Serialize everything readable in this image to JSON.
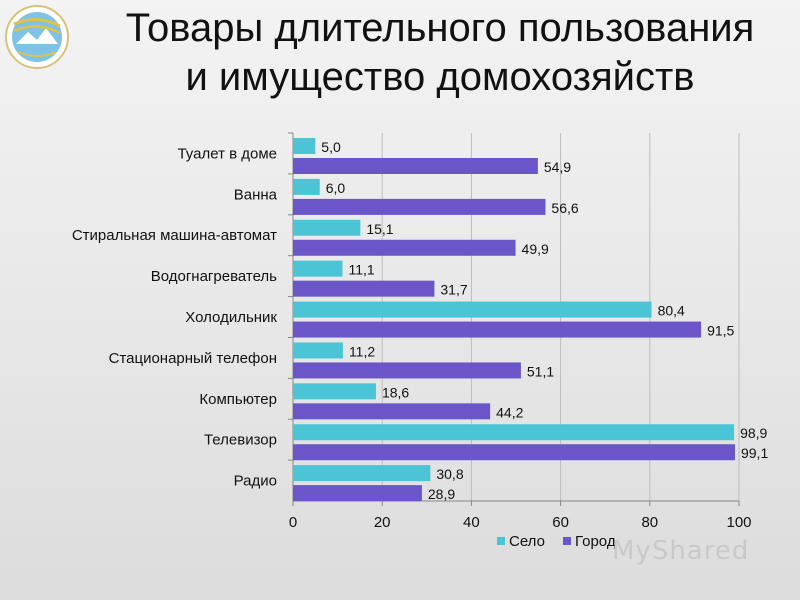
{
  "header": {
    "title_line1": "Товары длительного пользования",
    "title_line2": "и имущество домохозяйств",
    "logo_icon": "statagency-logo-icon"
  },
  "watermark": {
    "text": "MyShared"
  },
  "colors": {
    "selo": "#4BC5D5",
    "gorod": "#6A56C8"
  },
  "chart_data": {
    "type": "bar",
    "orientation": "horizontal",
    "categories": [
      "Туалет в доме",
      "Ванна",
      "Стиральная машина-автомат",
      "Водогнагреватель",
      "Холодильник",
      "Стационарный телефон",
      "Компьютер",
      "Телевизор",
      "Радио"
    ],
    "series": [
      {
        "name": "Село",
        "values": [
          5.0,
          6.0,
          15.1,
          11.1,
          80.4,
          11.2,
          18.6,
          98.9,
          30.8
        ],
        "labels": [
          "5,0",
          "6,0",
          "15,1",
          "11,1",
          "80,4",
          "11,2",
          "18,6",
          "98,9",
          "30,8"
        ]
      },
      {
        "name": "Город",
        "values": [
          54.9,
          56.6,
          49.9,
          31.7,
          91.5,
          51.1,
          44.2,
          99.1,
          28.9
        ],
        "labels": [
          "54,9",
          "56,6",
          "49,9",
          "31,7",
          "91,5",
          "51,1",
          "44,2",
          "99,1",
          "28,9"
        ]
      }
    ],
    "xlim": [
      0,
      100
    ],
    "xticks": [
      "0",
      "20",
      "40",
      "60",
      "80",
      "100"
    ],
    "grid": true,
    "legend": "bottom"
  }
}
